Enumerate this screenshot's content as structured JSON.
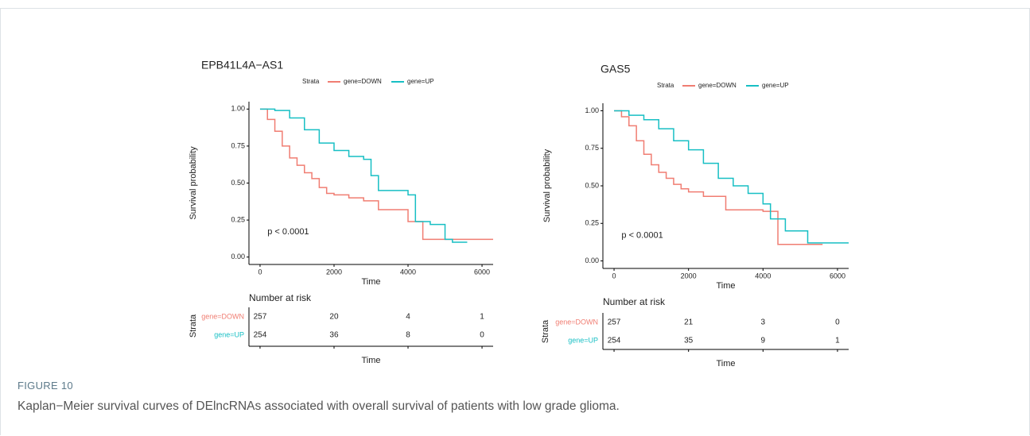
{
  "chart_data": [
    {
      "type": "step",
      "title": "EPB41L4A−AS1",
      "legend_title": "Strata",
      "xlabel": "Time",
      "ylabel": "Survival probability",
      "annotation": "p < 0.0001",
      "xlim": [
        -300,
        6300
      ],
      "ylim": [
        -0.05,
        1.05
      ],
      "xticks": [
        0,
        2000,
        4000,
        6000
      ],
      "yticks": [
        {
          "value": 0,
          "label": "0.00"
        },
        0.25,
        {
          "value": 0.5,
          "label": "0.50"
        },
        0.75,
        {
          "value": 1,
          "label": "1.00"
        }
      ],
      "series": [
        {
          "name": "gene=DOWN",
          "color": "#f07d72",
          "x": [
            0,
            200,
            400,
            600,
            800,
            1000,
            1200,
            1400,
            1600,
            1800,
            2000,
            2400,
            2800,
            3200,
            3600,
            4000,
            4400,
            5600,
            6300
          ],
          "values": [
            1,
            0.93,
            0.85,
            0.75,
            0.67,
            0.62,
            0.57,
            0.53,
            0.47,
            0.43,
            0.42,
            0.4,
            0.38,
            0.32,
            0.32,
            0.24,
            0.12,
            0.12,
            0.12
          ]
        },
        {
          "name": "gene=UP",
          "color": "#17bfc4",
          "x": [
            0,
            400,
            800,
            1200,
            1600,
            2000,
            2400,
            2800,
            3000,
            3200,
            3600,
            4000,
            4200,
            4600,
            5000,
            5200,
            5600
          ],
          "values": [
            1,
            0.99,
            0.94,
            0.86,
            0.77,
            0.72,
            0.68,
            0.66,
            0.55,
            0.45,
            0.45,
            0.42,
            0.24,
            0.22,
            0.12,
            0.1,
            0.1
          ]
        }
      ],
      "risk_table": {
        "title": "Number at risk",
        "ylabel": "Strata",
        "xlabel": "Time",
        "rows": [
          {
            "name": "gene=DOWN",
            "values": [
              257,
              20,
              4,
              1
            ]
          },
          {
            "name": "gene=UP",
            "values": [
              254,
              36,
              8,
              0
            ]
          }
        ]
      }
    },
    {
      "type": "step",
      "title": "GAS5",
      "legend_title": "Strata",
      "xlabel": "Time",
      "ylabel": "Survival probability",
      "annotation": "p < 0.0001",
      "xlim": [
        -300,
        6300
      ],
      "ylim": [
        -0.05,
        1.05
      ],
      "xticks": [
        0,
        2000,
        4000,
        6000
      ],
      "yticks": [
        {
          "value": 0,
          "label": "0.00"
        },
        0.25,
        {
          "value": 0.5,
          "label": "0.50"
        },
        0.75,
        {
          "value": 1,
          "label": "1.00"
        }
      ],
      "series": [
        {
          "name": "gene=DOWN",
          "color": "#f07d72",
          "x": [
            0,
            200,
            400,
            600,
            800,
            1000,
            1200,
            1400,
            1600,
            1800,
            2000,
            2400,
            2800,
            3000,
            3600,
            4000,
            4400,
            5600
          ],
          "values": [
            1,
            0.96,
            0.9,
            0.8,
            0.71,
            0.64,
            0.59,
            0.55,
            0.51,
            0.48,
            0.46,
            0.43,
            0.43,
            0.34,
            0.34,
            0.33,
            0.11,
            0.11
          ]
        },
        {
          "name": "gene=UP",
          "color": "#17bfc4",
          "x": [
            0,
            400,
            800,
            1200,
            1600,
            2000,
            2400,
            2800,
            3200,
            3600,
            4000,
            4200,
            4600,
            5200,
            5600,
            6300
          ],
          "values": [
            1,
            0.97,
            0.94,
            0.88,
            0.8,
            0.74,
            0.65,
            0.55,
            0.5,
            0.45,
            0.38,
            0.28,
            0.2,
            0.12,
            0.12,
            0.12
          ]
        }
      ],
      "risk_table": {
        "title": "Number at risk",
        "ylabel": "Strata",
        "xlabel": "Time",
        "rows": [
          {
            "name": "gene=DOWN",
            "values": [
              257,
              21,
              3,
              0
            ]
          },
          {
            "name": "gene=UP",
            "values": [
              254,
              35,
              9,
              1
            ]
          }
        ]
      }
    }
  ],
  "figure_label": "FIGURE 10",
  "caption": "Kaplan−Meier survival curves of DElncRNAs associated with overall survival of patients with low grade glioma."
}
